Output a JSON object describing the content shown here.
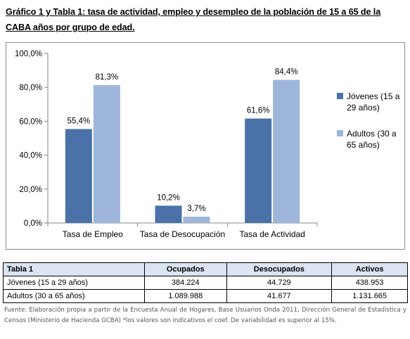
{
  "title": "Gráfico 1 y Tabla 1: tasa de actividad, empleo y desempleo de la población de 15 a 65 de la CABA años por grupo de edad.",
  "chart_data": {
    "type": "bar",
    "categories": [
      "Tasa de Empleo",
      "Tasa de Desocupación",
      "Tasa de Actividad"
    ],
    "series": [
      {
        "name": "Jóvenes (15 a 29 años)",
        "values": [
          55.4,
          10.2,
          61.6
        ],
        "labels": [
          "55,4%",
          "10,2%",
          "61,6%"
        ],
        "color": "#4a72a8"
      },
      {
        "name": "Adultos (30 a 65 años)",
        "values": [
          81.3,
          3.7,
          84.4
        ],
        "labels": [
          "81,3%",
          "3,7%",
          "84,4%"
        ],
        "color": "#9db6d9"
      }
    ],
    "ylim": [
      0,
      100
    ],
    "yticks": [
      0,
      20,
      40,
      60,
      80,
      100
    ],
    "ytick_labels": [
      "0,0%",
      "20,0%",
      "40,0%",
      "60,0%",
      "80,0%",
      "100,0%"
    ],
    "grid": false,
    "legend_position": "right"
  },
  "table": {
    "caption": "Tabla 1",
    "columns": [
      "Ocupados",
      "Desocupados",
      "Activos"
    ],
    "rows": [
      {
        "label": "Jóvenes (15 a 29 años)",
        "values": [
          "384.224",
          "44.729",
          "438.953"
        ]
      },
      {
        "label": "Adultos (30 a 65 años)",
        "values": [
          "1.089.988",
          "41.677",
          "1.131.665"
        ]
      }
    ]
  },
  "source": "Fuente: Elaboración propia a partir de la Encuesta Anual de Hogares, Base Usuarios Onda 2011, Dirección General de Estadística y Censos (Ministerio de Hacienda GCBA) *los valores son indicativos el coef. De variabilidad es superior al 15%."
}
